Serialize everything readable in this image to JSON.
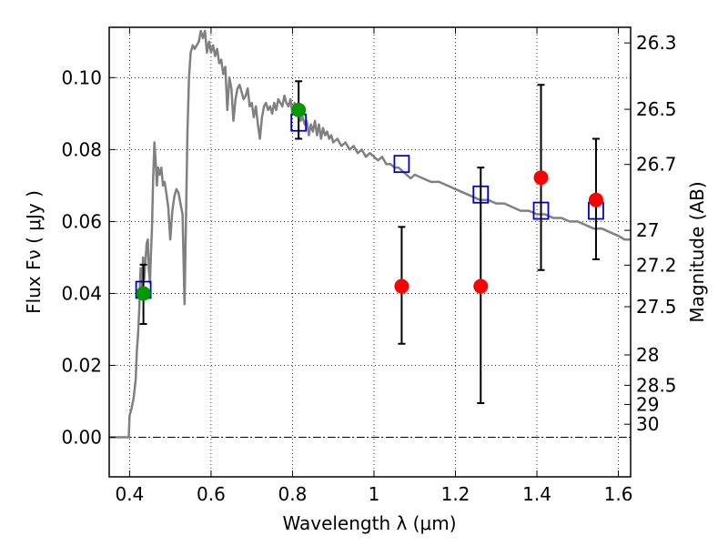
{
  "chart_data": {
    "type": "scatter",
    "xlabel": "Wavelength  λ (μm)",
    "ylabel": "Flux  Fν  ( μJy )",
    "y2label": "Magnitude (AB)",
    "xlim": [
      0.35,
      1.63
    ],
    "ylim": [
      -0.011,
      0.114
    ],
    "grid": true,
    "x_ticks": [
      {
        "value": 0.4,
        "label": "0.4"
      },
      {
        "value": 0.6,
        "label": "0.6"
      },
      {
        "value": 0.8,
        "label": "0.8"
      },
      {
        "value": 1.0,
        "label": "1"
      },
      {
        "value": 1.2,
        "label": "1.2"
      },
      {
        "value": 1.4,
        "label": "1.4"
      },
      {
        "value": 1.6,
        "label": "1.6"
      }
    ],
    "y_ticks": [
      {
        "value": 0.0,
        "label": "0.00"
      },
      {
        "value": 0.02,
        "label": "0.02"
      },
      {
        "value": 0.04,
        "label": "0.04"
      },
      {
        "value": 0.06,
        "label": "0.06"
      },
      {
        "value": 0.08,
        "label": "0.08"
      },
      {
        "value": 0.1,
        "label": "0.10"
      }
    ],
    "y2_ticks": [
      {
        "value": 26.3,
        "label": "26.3"
      },
      {
        "value": 26.5,
        "label": "26.5"
      },
      {
        "value": 26.7,
        "label": "26.7"
      },
      {
        "value": 27.0,
        "label": "27"
      },
      {
        "value": 27.2,
        "label": "27.2"
      },
      {
        "value": 27.5,
        "label": "27.5"
      },
      {
        "value": 28.0,
        "label": "28"
      },
      {
        "value": 28.5,
        "label": "28.5"
      },
      {
        "value": 29.0,
        "label": "29"
      },
      {
        "value": 30.0,
        "label": "30"
      }
    ],
    "series": [
      {
        "kind": "line",
        "color": "#808080",
        "points": [
          [
            0.35,
            0.0
          ],
          [
            0.398,
            0.0
          ],
          [
            0.4,
            0.006
          ],
          [
            0.405,
            0.008
          ],
          [
            0.41,
            0.011
          ],
          [
            0.415,
            0.016
          ],
          [
            0.418,
            0.024
          ],
          [
            0.421,
            0.029
          ],
          [
            0.424,
            0.036
          ],
          [
            0.427,
            0.047
          ],
          [
            0.43,
            0.041
          ],
          [
            0.433,
            0.05
          ],
          [
            0.436,
            0.044
          ],
          [
            0.439,
            0.049
          ],
          [
            0.442,
            0.054
          ],
          [
            0.445,
            0.055
          ],
          [
            0.447,
            0.047
          ],
          [
            0.45,
            0.043
          ],
          [
            0.452,
            0.05
          ],
          [
            0.455,
            0.058
          ],
          [
            0.458,
            0.072
          ],
          [
            0.461,
            0.082
          ],
          [
            0.464,
            0.077
          ],
          [
            0.467,
            0.07
          ],
          [
            0.47,
            0.075
          ],
          [
            0.474,
            0.073
          ],
          [
            0.478,
            0.075
          ],
          [
            0.482,
            0.07
          ],
          [
            0.486,
            0.071
          ],
          [
            0.49,
            0.068
          ],
          [
            0.495,
            0.064
          ],
          [
            0.5,
            0.055
          ],
          [
            0.505,
            0.063
          ],
          [
            0.51,
            0.067
          ],
          [
            0.515,
            0.069
          ],
          [
            0.52,
            0.068
          ],
          [
            0.525,
            0.065
          ],
          [
            0.53,
            0.062
          ],
          [
            0.535,
            0.037
          ],
          [
            0.538,
            0.058
          ],
          [
            0.542,
            0.085
          ],
          [
            0.546,
            0.1
          ],
          [
            0.55,
            0.107
          ],
          [
            0.555,
            0.109
          ],
          [
            0.56,
            0.108
          ],
          [
            0.565,
            0.109
          ],
          [
            0.57,
            0.11
          ],
          [
            0.575,
            0.113
          ],
          [
            0.58,
            0.111
          ],
          [
            0.585,
            0.113
          ],
          [
            0.59,
            0.107
          ],
          [
            0.595,
            0.11
          ],
          [
            0.6,
            0.107
          ],
          [
            0.605,
            0.109
          ],
          [
            0.61,
            0.106
          ],
          [
            0.615,
            0.108
          ],
          [
            0.62,
            0.104
          ],
          [
            0.625,
            0.105
          ],
          [
            0.63,
            0.101
          ],
          [
            0.635,
            0.103
          ],
          [
            0.64,
            0.091
          ],
          [
            0.645,
            0.1
          ],
          [
            0.65,
            0.097
          ],
          [
            0.655,
            0.088
          ],
          [
            0.66,
            0.094
          ],
          [
            0.665,
            0.097
          ],
          [
            0.67,
            0.098
          ],
          [
            0.675,
            0.096
          ],
          [
            0.68,
            0.094
          ],
          [
            0.685,
            0.095
          ],
          [
            0.69,
            0.097
          ],
          [
            0.695,
            0.092
          ],
          [
            0.7,
            0.093
          ],
          [
            0.705,
            0.089
          ],
          [
            0.71,
            0.092
          ],
          [
            0.715,
            0.087
          ],
          [
            0.72,
            0.083
          ],
          [
            0.725,
            0.089
          ],
          [
            0.73,
            0.092
          ],
          [
            0.735,
            0.093
          ],
          [
            0.74,
            0.091
          ],
          [
            0.745,
            0.092
          ],
          [
            0.75,
            0.09
          ],
          [
            0.755,
            0.093
          ],
          [
            0.76,
            0.091
          ],
          [
            0.765,
            0.094
          ],
          [
            0.77,
            0.093
          ],
          [
            0.775,
            0.092
          ],
          [
            0.78,
            0.095
          ],
          [
            0.785,
            0.093
          ],
          [
            0.79,
            0.092
          ],
          [
            0.795,
            0.094
          ],
          [
            0.8,
            0.09
          ],
          [
            0.805,
            0.093
          ],
          [
            0.81,
            0.09
          ],
          [
            0.815,
            0.091
          ],
          [
            0.82,
            0.088
          ],
          [
            0.825,
            0.089
          ],
          [
            0.83,
            0.087
          ],
          [
            0.835,
            0.088
          ],
          [
            0.84,
            0.084
          ],
          [
            0.845,
            0.087
          ],
          [
            0.85,
            0.085
          ],
          [
            0.855,
            0.088
          ],
          [
            0.86,
            0.084
          ],
          [
            0.865,
            0.087
          ],
          [
            0.87,
            0.083
          ],
          [
            0.875,
            0.086
          ],
          [
            0.88,
            0.084
          ],
          [
            0.885,
            0.085
          ],
          [
            0.89,
            0.083
          ],
          [
            0.895,
            0.084
          ],
          [
            0.9,
            0.082
          ],
          [
            0.91,
            0.083
          ],
          [
            0.92,
            0.081
          ],
          [
            0.93,
            0.082
          ],
          [
            0.94,
            0.08
          ],
          [
            0.95,
            0.081
          ],
          [
            0.96,
            0.079
          ],
          [
            0.97,
            0.08
          ],
          [
            0.98,
            0.078
          ],
          [
            0.99,
            0.079
          ],
          [
            1.0,
            0.078
          ],
          [
            1.01,
            0.077
          ],
          [
            1.02,
            0.078
          ],
          [
            1.03,
            0.076
          ],
          [
            1.04,
            0.076
          ],
          [
            1.05,
            0.075
          ],
          [
            1.06,
            0.075
          ],
          [
            1.07,
            0.074
          ],
          [
            1.08,
            0.073
          ],
          [
            1.09,
            0.072
          ],
          [
            1.1,
            0.073
          ],
          [
            1.12,
            0.072
          ],
          [
            1.14,
            0.071
          ],
          [
            1.16,
            0.071
          ],
          [
            1.18,
            0.07
          ],
          [
            1.2,
            0.069
          ],
          [
            1.22,
            0.068
          ],
          [
            1.24,
            0.067
          ],
          [
            1.26,
            0.066
          ],
          [
            1.28,
            0.066
          ],
          [
            1.3,
            0.065
          ],
          [
            1.32,
            0.065
          ],
          [
            1.34,
            0.064
          ],
          [
            1.36,
            0.063
          ],
          [
            1.38,
            0.063
          ],
          [
            1.4,
            0.062
          ],
          [
            1.42,
            0.062
          ],
          [
            1.44,
            0.061
          ],
          [
            1.46,
            0.061
          ],
          [
            1.48,
            0.06
          ],
          [
            1.5,
            0.06
          ],
          [
            1.52,
            0.059
          ],
          [
            1.54,
            0.058
          ],
          [
            1.56,
            0.058
          ],
          [
            1.58,
            0.057
          ],
          [
            1.6,
            0.056
          ],
          [
            1.615,
            0.055
          ],
          [
            1.63,
            0.055
          ]
        ]
      },
      {
        "kind": "markers",
        "marker": "square",
        "color": "#0000cc",
        "points": [
          [
            0.434,
            0.041
          ],
          [
            0.815,
            0.0875
          ],
          [
            1.068,
            0.076
          ],
          [
            1.262,
            0.0675
          ],
          [
            1.41,
            0.063
          ],
          [
            1.545,
            0.063
          ]
        ]
      },
      {
        "kind": "errorbar",
        "marker": "circle",
        "color": "#009900",
        "points": [
          {
            "x": 0.434,
            "y": 0.04,
            "lo": 0.0315,
            "hi": 0.048
          },
          {
            "x": 0.815,
            "y": 0.091,
            "lo": 0.083,
            "hi": 0.099
          }
        ]
      },
      {
        "kind": "errorbar",
        "marker": "circle",
        "color": "#ff0000",
        "points": [
          {
            "x": 1.068,
            "y": 0.042,
            "lo": 0.026,
            "hi": 0.0585
          },
          {
            "x": 1.262,
            "y": 0.042,
            "lo": 0.0095,
            "hi": 0.075
          },
          {
            "x": 1.41,
            "y": 0.0722,
            "lo": 0.0465,
            "hi": 0.098
          },
          {
            "x": 1.545,
            "y": 0.066,
            "lo": 0.0495,
            "hi": 0.083
          }
        ]
      }
    ]
  }
}
